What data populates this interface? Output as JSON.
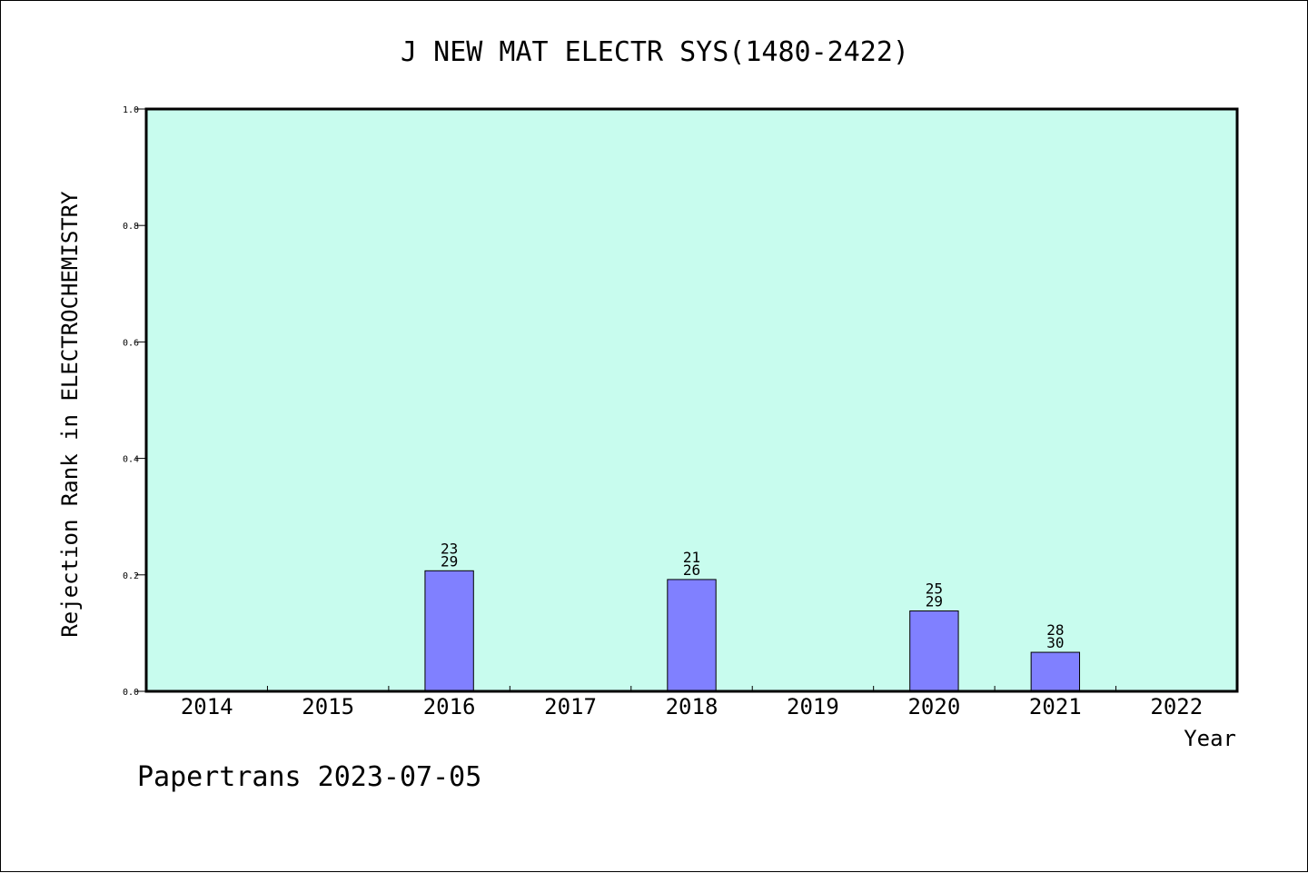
{
  "chart_data": {
    "type": "bar",
    "title": "J NEW MAT ELECTR SYS(1480-2422)",
    "xlabel": "Year",
    "ylabel": "Rejection Rank in ELECTROCHEMISTRY",
    "categories": [
      "2014",
      "2015",
      "2016",
      "2017",
      "2018",
      "2019",
      "2020",
      "2021",
      "2022"
    ],
    "values": [
      null,
      null,
      0.207,
      null,
      0.192,
      null,
      0.138,
      0.067,
      null
    ],
    "bar_labels": [
      null,
      null,
      {
        "top": "23",
        "bottom": "29"
      },
      null,
      {
        "top": "21",
        "bottom": "26"
      },
      null,
      {
        "top": "25",
        "bottom": "29"
      },
      {
        "top": "28",
        "bottom": "30"
      },
      null
    ],
    "ylim": [
      0,
      1.0
    ],
    "yticks": [
      "0.0",
      "0.2",
      "0.4",
      "0.6",
      "0.8",
      "1.0"
    ],
    "grid": false,
    "colors": {
      "plot_background": "#c8fcee",
      "bar_fill": "#8080ff",
      "bar_stroke": "#000000"
    }
  },
  "footer": "Papertrans 2023-07-05"
}
